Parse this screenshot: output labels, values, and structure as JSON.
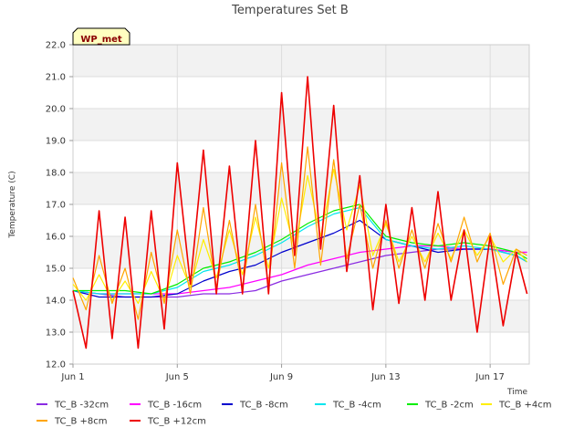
{
  "chart_data": {
    "type": "line",
    "title": "Temperatures Set B",
    "xlabel": "Time",
    "ylabel": "Temperature (C)",
    "ylim": [
      12.0,
      22.0
    ],
    "xlim": [
      "2023-06-01",
      "2023-06-18T12:00"
    ],
    "grid": true,
    "badge": "WP_met",
    "legend_placement": "bottom",
    "yticks": [
      "12.0",
      "13.0",
      "14.0",
      "15.0",
      "16.0",
      "17.0",
      "18.0",
      "19.0",
      "20.0",
      "21.0",
      "22.0"
    ],
    "xticks": [
      {
        "label": "Jun 1",
        "date": "2023-06-01"
      },
      {
        "label": "Jun 5",
        "date": "2023-06-05"
      },
      {
        "label": "Jun 9",
        "date": "2023-06-09"
      },
      {
        "label": "Jun 13",
        "date": "2023-06-13"
      },
      {
        "label": "Jun 17",
        "date": "2023-06-17"
      }
    ],
    "series": [
      {
        "name": "TC_B -32cm",
        "color": "#8a2be2",
        "x": [
          "2023-06-01T00:00",
          "2023-06-02T00:00",
          "2023-06-03T00:00",
          "2023-06-04T00:00",
          "2023-06-05T00:00",
          "2023-06-06T00:00",
          "2023-06-07T00:00",
          "2023-06-08T00:00",
          "2023-06-09T00:00",
          "2023-06-10T00:00",
          "2023-06-11T00:00",
          "2023-06-12T00:00",
          "2023-06-13T00:00",
          "2023-06-14T00:00",
          "2023-06-15T00:00",
          "2023-06-16T00:00",
          "2023-06-17T00:00",
          "2023-06-18T00:00",
          "2023-06-18T10:00"
        ],
        "y": [
          14.3,
          14.2,
          14.1,
          14.1,
          14.1,
          14.2,
          14.2,
          14.3,
          14.6,
          14.8,
          15.0,
          15.2,
          15.4,
          15.5,
          15.6,
          15.6,
          15.6,
          15.5,
          15.5
        ]
      },
      {
        "name": "TC_B -16cm",
        "color": "#ff00ff",
        "x": [
          "2023-06-01T00:00",
          "2023-06-02T00:00",
          "2023-06-03T00:00",
          "2023-06-04T00:00",
          "2023-06-05T00:00",
          "2023-06-06T00:00",
          "2023-06-07T00:00",
          "2023-06-08T00:00",
          "2023-06-09T00:00",
          "2023-06-10T00:00",
          "2023-06-11T00:00",
          "2023-06-12T00:00",
          "2023-06-13T00:00",
          "2023-06-14T00:00",
          "2023-06-15T00:00",
          "2023-06-16T00:00",
          "2023-06-17T00:00",
          "2023-06-18T00:00",
          "2023-06-18T10:00"
        ],
        "y": [
          14.3,
          14.2,
          14.2,
          14.2,
          14.2,
          14.3,
          14.4,
          14.6,
          14.8,
          15.1,
          15.3,
          15.5,
          15.6,
          15.7,
          15.7,
          15.6,
          15.6,
          15.5,
          15.5
        ]
      },
      {
        "name": "TC_B -8cm",
        "color": "#0000cd",
        "x": [
          "2023-06-01T00:00",
          "2023-06-02T00:00",
          "2023-06-03T00:00",
          "2023-06-04T00:00",
          "2023-06-05T00:00",
          "2023-06-06T00:00",
          "2023-06-07T00:00",
          "2023-06-08T00:00",
          "2023-06-09T00:00",
          "2023-06-10T00:00",
          "2023-06-11T00:00",
          "2023-06-12T00:00",
          "2023-06-13T00:00",
          "2023-06-14T00:00",
          "2023-06-15T00:00",
          "2023-06-16T00:00",
          "2023-06-17T00:00",
          "2023-06-18T00:00",
          "2023-06-18T10:00"
        ],
        "y": [
          14.3,
          14.1,
          14.1,
          14.1,
          14.2,
          14.6,
          14.9,
          15.1,
          15.5,
          15.8,
          16.1,
          16.5,
          15.9,
          15.7,
          15.5,
          15.6,
          15.6,
          15.4,
          15.2
        ]
      },
      {
        "name": "TC_B -4cm",
        "color": "#00e5ee",
        "x": [
          "2023-06-01T00:00",
          "2023-06-02T00:00",
          "2023-06-03T00:00",
          "2023-06-04T00:00",
          "2023-06-05T00:00",
          "2023-06-06T00:00",
          "2023-06-07T00:00",
          "2023-06-08T00:00",
          "2023-06-09T00:00",
          "2023-06-10T00:00",
          "2023-06-11T00:00",
          "2023-06-12T00:00",
          "2023-06-13T00:00",
          "2023-06-14T00:00",
          "2023-06-15T00:00",
          "2023-06-16T00:00",
          "2023-06-17T00:00",
          "2023-06-18T00:00",
          "2023-06-18T10:00"
        ],
        "y": [
          14.3,
          14.2,
          14.2,
          14.2,
          14.4,
          14.9,
          15.1,
          15.4,
          15.8,
          16.3,
          16.7,
          16.9,
          15.9,
          15.7,
          15.6,
          15.7,
          15.6,
          15.4,
          15.2
        ]
      },
      {
        "name": "TC_B -2cm",
        "color": "#00ee00",
        "x": [
          "2023-06-01T00:00",
          "2023-06-02T00:00",
          "2023-06-03T00:00",
          "2023-06-04T00:00",
          "2023-06-05T00:00",
          "2023-06-06T00:00",
          "2023-06-07T00:00",
          "2023-06-08T00:00",
          "2023-06-09T00:00",
          "2023-06-10T00:00",
          "2023-06-11T00:00",
          "2023-06-12T00:00",
          "2023-06-13T00:00",
          "2023-06-14T00:00",
          "2023-06-15T00:00",
          "2023-06-16T00:00",
          "2023-06-17T00:00",
          "2023-06-18T00:00",
          "2023-06-18T10:00"
        ],
        "y": [
          14.3,
          14.3,
          14.3,
          14.2,
          14.5,
          15.0,
          15.2,
          15.5,
          15.9,
          16.4,
          16.8,
          17.0,
          16.0,
          15.8,
          15.7,
          15.8,
          15.7,
          15.5,
          15.3
        ]
      },
      {
        "name": "TC_B +4cm",
        "color": "#ffee00",
        "x": [
          "2023-06-01T00:00",
          "2023-06-01T12:00",
          "2023-06-02T00:00",
          "2023-06-02T12:00",
          "2023-06-03T00:00",
          "2023-06-03T12:00",
          "2023-06-04T00:00",
          "2023-06-04T12:00",
          "2023-06-05T00:00",
          "2023-06-05T12:00",
          "2023-06-06T00:00",
          "2023-06-06T12:00",
          "2023-06-07T00:00",
          "2023-06-07T12:00",
          "2023-06-08T00:00",
          "2023-06-08T12:00",
          "2023-06-09T00:00",
          "2023-06-09T12:00",
          "2023-06-10T00:00",
          "2023-06-10T12:00",
          "2023-06-11T00:00",
          "2023-06-11T12:00",
          "2023-06-12T00:00",
          "2023-06-12T12:00",
          "2023-06-13T00:00",
          "2023-06-13T12:00",
          "2023-06-14T00:00",
          "2023-06-14T12:00",
          "2023-06-15T00:00",
          "2023-06-15T12:00",
          "2023-06-16T00:00",
          "2023-06-16T12:00",
          "2023-06-17T00:00",
          "2023-06-17T12:00",
          "2023-06-18T00:00",
          "2023-06-18T10:00"
        ],
        "y": [
          14.5,
          14.0,
          14.8,
          14.0,
          14.6,
          13.9,
          14.9,
          14.0,
          15.4,
          14.4,
          15.9,
          14.7,
          16.2,
          14.8,
          16.6,
          15.0,
          17.2,
          15.6,
          17.9,
          16.0,
          18.1,
          16.2,
          17.6,
          15.4,
          16.4,
          15.2,
          16.0,
          15.2,
          16.1,
          15.3,
          16.2,
          15.4,
          16.0,
          15.2,
          15.6,
          15.2
        ]
      },
      {
        "name": "TC_B +8cm",
        "color": "#ffa500",
        "x": [
          "2023-06-01T00:00",
          "2023-06-01T12:00",
          "2023-06-02T00:00",
          "2023-06-02T12:00",
          "2023-06-03T00:00",
          "2023-06-03T12:00",
          "2023-06-04T00:00",
          "2023-06-04T12:00",
          "2023-06-05T00:00",
          "2023-06-05T12:00",
          "2023-06-06T00:00",
          "2023-06-06T12:00",
          "2023-06-07T00:00",
          "2023-06-07T12:00",
          "2023-06-08T00:00",
          "2023-06-08T12:00",
          "2023-06-09T00:00",
          "2023-06-09T12:00",
          "2023-06-10T00:00",
          "2023-06-10T12:00",
          "2023-06-11T00:00",
          "2023-06-11T12:00",
          "2023-06-12T00:00",
          "2023-06-12T12:00",
          "2023-06-13T00:00",
          "2023-06-13T12:00",
          "2023-06-14T00:00",
          "2023-06-14T12:00",
          "2023-06-15T00:00",
          "2023-06-15T12:00",
          "2023-06-16T00:00",
          "2023-06-16T12:00",
          "2023-06-17T00:00",
          "2023-06-17T12:00",
          "2023-06-18T00:00",
          "2023-06-18T10:00"
        ],
        "y": [
          14.7,
          13.7,
          15.4,
          13.9,
          15.0,
          13.4,
          15.5,
          13.9,
          16.2,
          14.2,
          16.9,
          14.4,
          16.5,
          14.4,
          17.0,
          14.5,
          18.3,
          15.0,
          18.8,
          15.1,
          18.4,
          15.3,
          17.0,
          15.0,
          16.5,
          15.0,
          16.2,
          15.0,
          16.4,
          15.2,
          16.6,
          15.2,
          16.1,
          14.5,
          15.6,
          15.4
        ]
      },
      {
        "name": "TC_B +12cm",
        "color": "#ee0000",
        "x": [
          "2023-06-01T00:00",
          "2023-06-01T12:00",
          "2023-06-02T00:00",
          "2023-06-02T12:00",
          "2023-06-03T00:00",
          "2023-06-03T12:00",
          "2023-06-04T00:00",
          "2023-06-04T12:00",
          "2023-06-05T00:00",
          "2023-06-05T12:00",
          "2023-06-06T00:00",
          "2023-06-06T12:00",
          "2023-06-07T00:00",
          "2023-06-07T12:00",
          "2023-06-08T00:00",
          "2023-06-08T12:00",
          "2023-06-09T00:00",
          "2023-06-09T12:00",
          "2023-06-10T00:00",
          "2023-06-10T12:00",
          "2023-06-11T00:00",
          "2023-06-11T12:00",
          "2023-06-12T00:00",
          "2023-06-12T12:00",
          "2023-06-13T00:00",
          "2023-06-13T12:00",
          "2023-06-14T00:00",
          "2023-06-14T12:00",
          "2023-06-15T00:00",
          "2023-06-15T12:00",
          "2023-06-16T00:00",
          "2023-06-16T12:00",
          "2023-06-17T00:00",
          "2023-06-17T12:00",
          "2023-06-18T00:00",
          "2023-06-18T10:00"
        ],
        "y": [
          14.3,
          12.5,
          16.8,
          12.8,
          16.6,
          12.5,
          16.8,
          13.1,
          18.3,
          14.5,
          18.7,
          14.2,
          18.2,
          14.2,
          19.0,
          14.2,
          20.5,
          15.4,
          21.0,
          15.6,
          20.1,
          14.9,
          17.9,
          13.7,
          17.0,
          13.9,
          16.9,
          14.0,
          17.4,
          14.0,
          16.2,
          13.0,
          16.0,
          13.2,
          15.5,
          14.2
        ]
      }
    ]
  }
}
